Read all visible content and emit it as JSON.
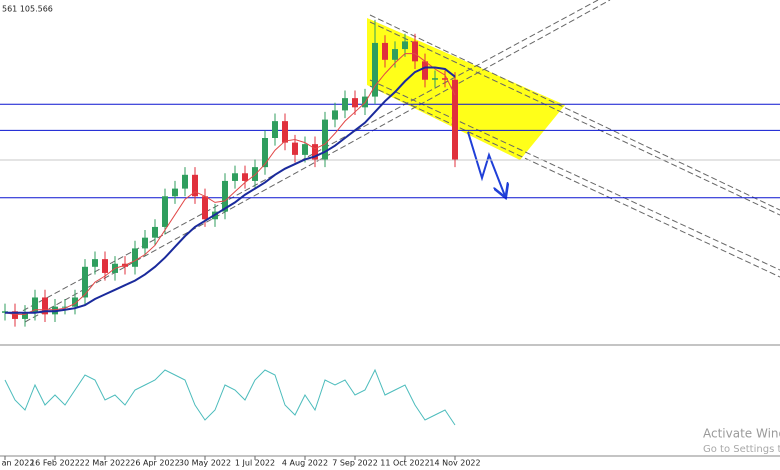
{
  "chart_data": [
    {
      "type": "candlestick",
      "title": "561 105.566",
      "categories": [
        "an 2022",
        null,
        null,
        null,
        null,
        "16 Feb 2022",
        null,
        null,
        null,
        null,
        "22 Mar 2022",
        null,
        null,
        null,
        null,
        "26 Apr 2022",
        null,
        null,
        null,
        null,
        "30 May 2022",
        null,
        null,
        null,
        null,
        "1 Jul 2022",
        null,
        null,
        null,
        null,
        "4 Aug 2022",
        null,
        null,
        null,
        null,
        "7 Sep 2022",
        null,
        null,
        null,
        null,
        "11 Oct 2022",
        null,
        null,
        null,
        null,
        "14 Nov 2022"
      ],
      "open": [
        95.6,
        95.7,
        95.2,
        95.6,
        96.6,
        95.5,
        96.0,
        96.0,
        96.6,
        98.6,
        99.1,
        98.2,
        98.8,
        98.6,
        99.8,
        100.5,
        101.2,
        103.2,
        103.7,
        104.6,
        103.2,
        101.7,
        102.2,
        104.2,
        104.7,
        104.2,
        105.1,
        107.0,
        108.1,
        106.7,
        105.9,
        106.6,
        105.6,
        108.2,
        108.8,
        109.6,
        109.0,
        109.7,
        113.2,
        112.1,
        112.8,
        113.3,
        112.0,
        110.8,
        110.9,
        110.8
      ],
      "high": [
        96.2,
        96.2,
        96.1,
        97.1,
        97.1,
        96.5,
        96.5,
        97.1,
        99.1,
        99.6,
        99.6,
        99.3,
        99.3,
        100.3,
        101.0,
        101.7,
        103.7,
        104.2,
        105.1,
        105.1,
        103.7,
        102.7,
        104.7,
        105.2,
        105.2,
        105.6,
        107.5,
        108.6,
        108.6,
        107.2,
        107.1,
        107.1,
        108.7,
        109.3,
        110.1,
        110.1,
        110.2,
        114.7,
        113.7,
        113.3,
        113.8,
        113.8,
        112.5,
        111.4,
        111.4,
        111.3
      ],
      "low": [
        95.1,
        94.7,
        94.7,
        95.1,
        95.0,
        95.0,
        95.5,
        95.5,
        96.1,
        98.1,
        97.7,
        97.7,
        98.1,
        98.1,
        99.3,
        100.0,
        100.7,
        102.7,
        103.2,
        102.7,
        101.2,
        101.2,
        101.7,
        103.7,
        103.7,
        103.7,
        104.6,
        106.5,
        106.2,
        105.4,
        105.4,
        105.1,
        105.1,
        107.7,
        108.3,
        108.5,
        108.5,
        109.2,
        111.6,
        111.6,
        112.3,
        111.5,
        110.3,
        110.3,
        110.3,
        105.1
      ],
      "close": [
        95.7,
        95.2,
        95.6,
        96.6,
        95.5,
        96.0,
        96.0,
        96.6,
        98.6,
        99.1,
        98.2,
        98.8,
        98.6,
        99.8,
        100.5,
        101.2,
        103.2,
        103.7,
        104.6,
        103.2,
        101.7,
        102.2,
        104.2,
        104.7,
        104.2,
        105.1,
        107.0,
        108.1,
        106.7,
        105.9,
        106.6,
        105.6,
        108.2,
        108.8,
        109.6,
        109.0,
        109.7,
        113.2,
        112.1,
        112.8,
        113.3,
        112.0,
        110.8,
        110.9,
        110.8,
        105.6
      ],
      "up_color": "#2f9e5e",
      "down_color": "#e0303c",
      "overlays": [
        {
          "color": "#e24848",
          "width": 1,
          "values": [
            95.6,
            95.5,
            95.5,
            95.8,
            95.8,
            95.8,
            95.9,
            96.2,
            96.8,
            97.6,
            98.0,
            98.5,
            98.7,
            99.0,
            99.4,
            100.0,
            101.0,
            102.0,
            103.0,
            103.5,
            103.2,
            102.8,
            102.9,
            103.5,
            104.1,
            104.6,
            105.3,
            106.2,
            106.8,
            106.9,
            106.7,
            106.3,
            106.6,
            107.3,
            108.1,
            108.7,
            109.3,
            110.4,
            111.2,
            111.9,
            112.5,
            112.5,
            112.0,
            111.5,
            111.1,
            109.8
          ]
        },
        {
          "color": "#1a2a9c",
          "width": 2,
          "values": [
            95.6,
            95.6,
            95.6,
            95.6,
            95.7,
            95.7,
            95.8,
            95.9,
            96.1,
            96.5,
            96.8,
            97.1,
            97.4,
            97.7,
            98.1,
            98.6,
            99.2,
            99.9,
            100.6,
            101.2,
            101.6,
            102.0,
            102.4,
            102.8,
            103.3,
            103.7,
            104.1,
            104.6,
            105.0,
            105.3,
            105.6,
            105.8,
            106.1,
            106.5,
            107.0,
            107.5,
            108.0,
            108.7,
            109.4,
            110.0,
            110.7,
            111.3,
            111.6,
            111.6,
            111.5,
            111.0
          ]
        }
      ],
      "hlines": [
        109.2,
        107.5,
        103.1
      ],
      "hline_color": "#0a14d0",
      "price_line": 105.566,
      "ylim": [
        93.5,
        116
      ]
    },
    {
      "type": "line",
      "color": "#4cbcbc",
      "values": [
        70,
        50,
        40,
        65,
        45,
        55,
        45,
        60,
        75,
        70,
        50,
        55,
        45,
        60,
        65,
        70,
        80,
        75,
        70,
        45,
        30,
        40,
        65,
        60,
        50,
        70,
        80,
        75,
        45,
        35,
        55,
        40,
        70,
        65,
        70,
        55,
        60,
        80,
        55,
        60,
        65,
        45,
        30,
        35,
        40,
        25
      ],
      "ylim": [
        0,
        100
      ]
    }
  ],
  "watermark": {
    "line1": "Activate Windows",
    "line2": "Go to Settings to activate Windows."
  }
}
